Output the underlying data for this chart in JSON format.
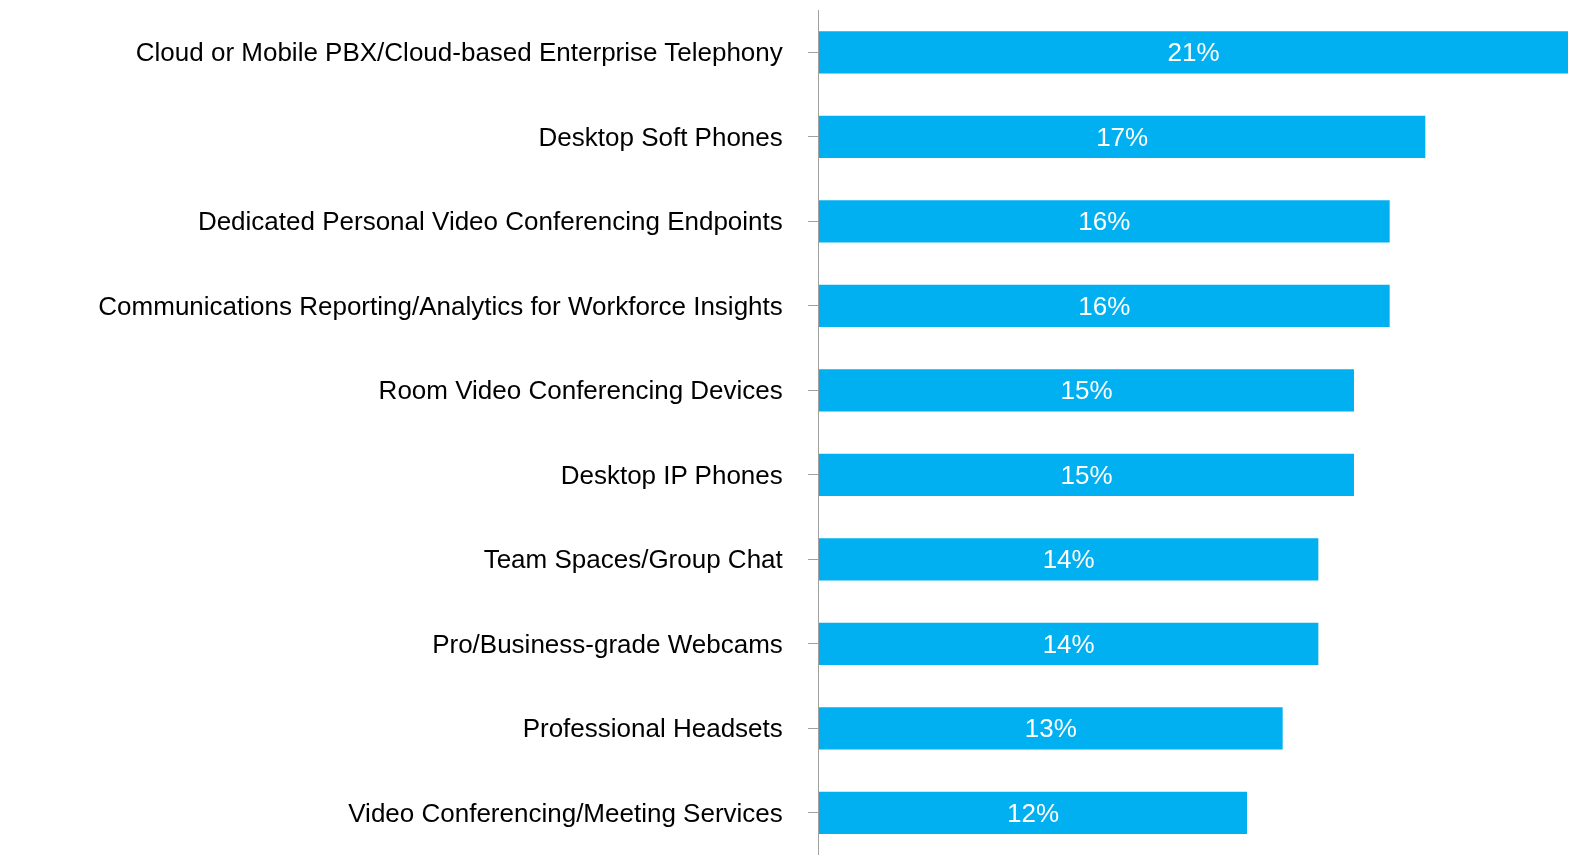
{
  "chart_data": {
    "type": "bar",
    "orientation": "horizontal",
    "categories": [
      "Cloud or Mobile PBX/Cloud-based Enterprise Telephony",
      "Desktop Soft Phones",
      "Dedicated Personal Video Conferencing Endpoints",
      "Communications Reporting/Analytics for Workforce Insights",
      "Room Video Conferencing Devices",
      "Desktop IP Phones",
      "Team Spaces/Group Chat",
      "Pro/Business-grade Webcams",
      "Professional Headsets",
      "Video Conferencing/Meeting Services"
    ],
    "values": [
      21,
      17,
      16,
      16,
      15,
      15,
      14,
      14,
      13,
      12
    ],
    "value_labels": [
      "21%",
      "17%",
      "16%",
      "16%",
      "15%",
      "15%",
      "14%",
      "14%",
      "13%",
      "12%"
    ],
    "color": "#00b0f0"
  }
}
